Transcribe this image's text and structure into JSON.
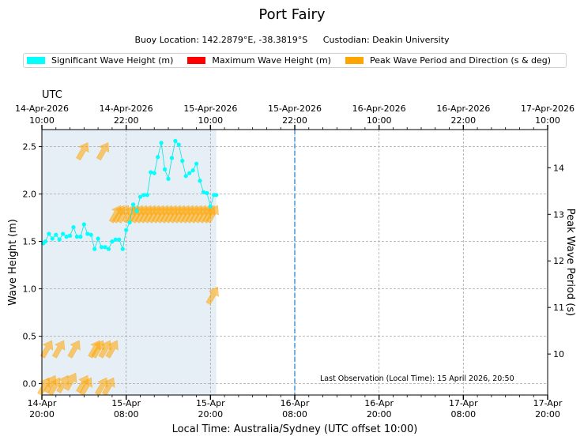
{
  "chart_data": {
    "type": "line",
    "title": "Port Fairy",
    "subtitle": {
      "location": "Buoy Location: 142.2879°E, -38.3819°S",
      "custodian": "Custodian: Deakin University"
    },
    "legend": [
      {
        "label": "Significant Wave Height (m)",
        "color": "#00ffff"
      },
      {
        "label": "Maximum Wave Height (m)",
        "color": "#ff0000"
      },
      {
        "label": "Peak Wave Period and Direction (s & deg)",
        "color": "#ffa500"
      }
    ],
    "xlabel": "Local Time: Australia/Sydney (UTC offset 10:00)",
    "ylabel": "Wave Height (m)",
    "y2label": "Peak Wave Period (s)",
    "top_axis_label": "UTC",
    "xlim": [
      0,
      72
    ],
    "ylim": [
      -0.12,
      2.68
    ],
    "y2lim": [
      9.12,
      14.82
    ],
    "yticks": [
      "0.0",
      "0.5",
      "1.0",
      "1.5",
      "2.0",
      "2.5"
    ],
    "yticks_values": [
      0,
      0.5,
      1.0,
      1.5,
      2.0,
      2.5
    ],
    "y2ticks": [
      "10",
      "11",
      "12",
      "13",
      "14"
    ],
    "y2ticks_values": [
      10,
      11,
      12,
      13,
      14
    ],
    "bottom_ticks": [
      {
        "date": "14-Apr",
        "time": "20:00",
        "hour": 0
      },
      {
        "date": "15-Apr",
        "time": "08:00",
        "hour": 12
      },
      {
        "date": "15-Apr",
        "time": "20:00",
        "hour": 24
      },
      {
        "date": "16-Apr",
        "time": "08:00",
        "hour": 36
      },
      {
        "date": "16-Apr",
        "time": "20:00",
        "hour": 48
      },
      {
        "date": "17-Apr",
        "time": "08:00",
        "hour": 60
      },
      {
        "date": "17-Apr",
        "time": "20:00",
        "hour": 72
      }
    ],
    "top_ticks": [
      {
        "date": "14-Apr-2026",
        "time": "10:00",
        "hour": 0
      },
      {
        "date": "14-Apr-2026",
        "time": "22:00",
        "hour": 12
      },
      {
        "date": "15-Apr-2026",
        "time": "10:00",
        "hour": 24
      },
      {
        "date": "15-Apr-2026",
        "time": "22:00",
        "hour": 36
      },
      {
        "date": "16-Apr-2026",
        "time": "10:00",
        "hour": 48
      },
      {
        "date": "16-Apr-2026",
        "time": "22:00",
        "hour": 60
      },
      {
        "date": "17-Apr-2026",
        "time": "10:00",
        "hour": 72
      }
    ],
    "now_marker_hour": 36,
    "observed_until_hour": 24.83,
    "annotation": "Last Observation (Local Time): 15 April 2026, 20:50",
    "sig_wave_height": {
      "hours": [
        0.2,
        0.5,
        1.0,
        1.5,
        2.0,
        2.5,
        3.0,
        3.5,
        4.0,
        4.5,
        5.0,
        5.5,
        6.0,
        6.5,
        7.0,
        7.5,
        8.0,
        8.5,
        9.0,
        9.5,
        10.0,
        10.5,
        11.0,
        11.5,
        12.0,
        12.5,
        13.0,
        13.5,
        14.0,
        14.5,
        15.0,
        15.5,
        16.0,
        16.5,
        17.0,
        17.5,
        18.0,
        18.5,
        19.0,
        19.5,
        20.0,
        20.5,
        21.0,
        21.5,
        22.0,
        22.5,
        23.0,
        23.5,
        24.0,
        24.5,
        24.83
      ],
      "values": [
        1.48,
        1.5,
        1.58,
        1.53,
        1.57,
        1.52,
        1.58,
        1.55,
        1.56,
        1.65,
        1.55,
        1.55,
        1.68,
        1.58,
        1.57,
        1.42,
        1.53,
        1.44,
        1.44,
        1.42,
        1.5,
        1.52,
        1.52,
        1.42,
        1.62,
        1.7,
        1.89,
        1.82,
        1.97,
        1.99,
        1.99,
        2.23,
        2.22,
        2.39,
        2.54,
        2.26,
        2.16,
        2.38,
        2.56,
        2.52,
        2.35,
        2.19,
        2.22,
        2.25,
        2.32,
        2.14,
        2.02,
        2.01,
        1.87,
        1.99,
        1.99
      ]
    },
    "peak_period_direction": {
      "hours": [
        0.3,
        0.7,
        1.2,
        1.8,
        2.4,
        3.0,
        4.1,
        4.6,
        5.8,
        6.3,
        7.5,
        8.0,
        8.5,
        9.0,
        9.5,
        10.0,
        10.5,
        11.0,
        11.6,
        12.4,
        13.0,
        13.6,
        14.2,
        14.8,
        15.4,
        16.0,
        16.6,
        17.2,
        17.8,
        18.4,
        19.0,
        19.6,
        20.2,
        20.8,
        21.4,
        22.0,
        22.6,
        23.2,
        23.8,
        24.3
      ],
      "periods_s": [
        9.3,
        10.1,
        9.35,
        9.3,
        10.1,
        9.35,
        9.4,
        10.1,
        9.35,
        9.3,
        10.1,
        10.1,
        9.3,
        10.1,
        9.3,
        10.1,
        13.0,
        13.0,
        13.0,
        13.0,
        13.0,
        13.0,
        13.0,
        13.0,
        13.0,
        13.0,
        13.0,
        13.0,
        13.0,
        13.0,
        13.0,
        13.0,
        13.0,
        13.0,
        13.0,
        13.0,
        13.0,
        13.0,
        13.0,
        13.0
      ],
      "direction_deg": [
        225,
        225,
        225,
        225,
        225,
        225,
        225,
        225,
        225,
        225,
        225,
        225,
        225,
        225,
        225,
        225,
        225,
        225,
        225,
        225,
        225,
        225,
        225,
        225,
        225,
        225,
        225,
        225,
        225,
        225,
        225,
        225,
        225,
        225,
        225,
        225,
        225,
        225,
        225,
        225
      ]
    },
    "extra_period_arrows": [
      {
        "hour": 5.8,
        "period_s": 14.35
      },
      {
        "hour": 8.7,
        "period_s": 14.35
      },
      {
        "hour": 24.3,
        "period_s": 11.25
      }
    ]
  }
}
